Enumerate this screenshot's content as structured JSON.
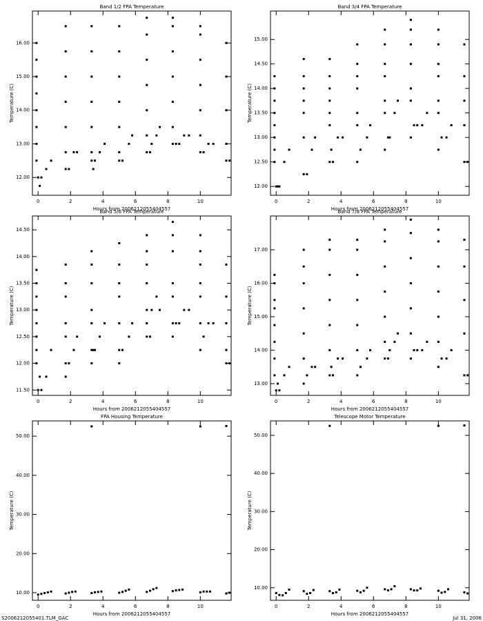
{
  "chart_data": [
    {
      "type": "scatter",
      "title": "Band 1/2 FPA Temperature",
      "x_label": "Hours from 2006212055404557",
      "y_label": "Temperature (C)",
      "color": "#000000",
      "xlim": [
        -0.35,
        11.9
      ],
      "xticks": [
        0,
        2,
        4,
        6,
        8,
        10
      ],
      "ylim": [
        11.47,
        16.95
      ],
      "yticks": [
        {
          "value": 12,
          "label": "12.00"
        },
        {
          "value": 13,
          "label": "13.00"
        },
        {
          "value": 14,
          "label": "14.00"
        },
        {
          "value": 15,
          "label": "15.00"
        },
        {
          "value": 16,
          "label": "16.00"
        }
      ],
      "x": [
        -0.1,
        -0.1,
        -0.1,
        -0.1,
        -0.1,
        -0.1,
        -0.1,
        -0.1,
        0.0,
        0.2,
        0.1,
        0.5,
        0.8,
        1.7,
        1.7,
        1.7,
        1.7,
        1.7,
        1.7,
        1.7,
        1.9,
        2.2,
        2.4,
        3.3,
        3.3,
        3.3,
        3.3,
        3.3,
        3.3,
        3.3,
        3.5,
        3.4,
        3.8,
        4.1,
        5.0,
        5.0,
        5.0,
        5.0,
        5.0,
        5.0,
        5.0,
        5.2,
        5.6,
        5.8,
        6.7,
        6.7,
        6.7,
        6.7,
        6.7,
        6.7,
        6.7,
        6.9,
        7.0,
        7.3,
        7.5,
        8.3,
        8.3,
        8.3,
        8.3,
        8.3,
        8.3,
        8.3,
        8.5,
        8.7,
        9.0,
        9.3,
        10.0,
        10.0,
        10.0,
        10.0,
        10.0,
        10.0,
        10.0,
        10.2,
        10.5,
        10.8,
        11.6,
        11.6,
        11.6,
        11.6,
        11.6,
        11.8
      ],
      "values": [
        12.5,
        13.0,
        13.5,
        14.0,
        14.5,
        15.0,
        15.5,
        16.0,
        12.0,
        12.0,
        11.75,
        12.25,
        12.5,
        12.75,
        13.5,
        14.25,
        15.0,
        15.75,
        16.5,
        12.25,
        12.25,
        12.75,
        12.75,
        12.75,
        13.5,
        14.25,
        15.0,
        15.75,
        16.5,
        12.5,
        12.5,
        12.25,
        12.75,
        13.0,
        12.75,
        13.5,
        14.25,
        15.0,
        15.75,
        16.5,
        12.5,
        12.5,
        13.0,
        13.25,
        13.25,
        14.0,
        14.75,
        15.5,
        16.25,
        16.75,
        12.75,
        12.75,
        13.0,
        13.25,
        13.5,
        13.5,
        14.25,
        15.0,
        15.75,
        16.5,
        16.75,
        13.0,
        13.0,
        13.0,
        13.25,
        13.25,
        13.25,
        14.0,
        14.75,
        15.5,
        16.25,
        16.5,
        12.75,
        12.75,
        13.0,
        13.0,
        13.0,
        14.0,
        15.0,
        16.0,
        12.5,
        12.5
      ]
    },
    {
      "type": "scatter",
      "title": "Band 3/4 FPA Temperature",
      "x_label": "Hours from 2006212055404557",
      "y_label": "Temperature (C)",
      "color": "#000000",
      "xlim": [
        -0.35,
        11.9
      ],
      "xticks": [
        0,
        2,
        4,
        6,
        8,
        10
      ],
      "ylim": [
        11.82,
        15.58
      ],
      "yticks": [
        {
          "value": 12,
          "label": "12.00"
        },
        {
          "value": 12.5,
          "label": "12.50"
        },
        {
          "value": 13,
          "label": "13.00"
        },
        {
          "value": 13.5,
          "label": "13.50"
        },
        {
          "value": 14,
          "label": "14.00"
        },
        {
          "value": 14.5,
          "label": "14.50"
        },
        {
          "value": 15,
          "label": "15.00"
        }
      ],
      "x": [
        -0.1,
        -0.1,
        -0.1,
        -0.1,
        -0.1,
        -0.1,
        -0.1,
        -0.1,
        0.0,
        0.2,
        0.1,
        0.5,
        0.8,
        1.7,
        1.7,
        1.7,
        1.7,
        1.7,
        1.7,
        1.7,
        1.9,
        2.2,
        2.4,
        3.3,
        3.3,
        3.3,
        3.3,
        3.3,
        3.3,
        3.3,
        3.5,
        3.4,
        3.8,
        4.1,
        5.0,
        5.0,
        5.0,
        5.0,
        5.0,
        5.0,
        5.0,
        5.2,
        5.6,
        5.8,
        6.7,
        6.7,
        6.7,
        6.7,
        6.7,
        6.7,
        6.7,
        6.9,
        7.0,
        7.3,
        7.5,
        8.3,
        8.3,
        8.3,
        8.3,
        8.3,
        8.3,
        8.3,
        8.5,
        8.7,
        9.0,
        9.3,
        10.0,
        10.0,
        10.0,
        10.0,
        10.0,
        10.0,
        10.0,
        10.2,
        10.5,
        10.8,
        11.6,
        11.6,
        11.6,
        11.6,
        11.6,
        11.8
      ],
      "values": [
        12.5,
        12.75,
        13.0,
        13.25,
        13.5,
        13.75,
        14.0,
        14.25,
        12.0,
        12.0,
        12.0,
        12.5,
        12.75,
        13.0,
        13.5,
        13.75,
        14.0,
        14.25,
        14.6,
        12.25,
        12.25,
        12.75,
        13.0,
        13.25,
        13.5,
        13.75,
        14.0,
        14.25,
        14.6,
        12.5,
        12.5,
        12.75,
        13.0,
        13.0,
        13.25,
        13.5,
        14.0,
        14.25,
        14.5,
        14.9,
        12.5,
        12.75,
        13.0,
        13.25,
        13.5,
        13.75,
        14.25,
        14.5,
        14.9,
        15.2,
        12.75,
        13.0,
        13.0,
        13.5,
        13.75,
        13.75,
        14.0,
        14.5,
        14.9,
        15.2,
        15.4,
        13.0,
        13.25,
        13.25,
        13.25,
        13.5,
        13.5,
        13.75,
        14.25,
        14.5,
        14.9,
        15.2,
        12.75,
        13.0,
        13.0,
        13.25,
        13.25,
        13.75,
        14.25,
        14.9,
        12.5,
        12.5
      ]
    },
    {
      "type": "scatter",
      "title": "Band 5/6 FPA Temperature",
      "x_label": "Hours from 2006212055404557",
      "y_label": "Temperature (C)",
      "color": "#000000",
      "xlim": [
        -0.35,
        11.9
      ],
      "xticks": [
        0,
        2,
        4,
        6,
        8,
        10
      ],
      "ylim": [
        11.4,
        14.76
      ],
      "yticks": [
        {
          "value": 11.5,
          "label": "11.50"
        },
        {
          "value": 12,
          "label": "12.00"
        },
        {
          "value": 12.5,
          "label": "12.50"
        },
        {
          "value": 13,
          "label": "13.00"
        },
        {
          "value": 13.5,
          "label": "13.50"
        },
        {
          "value": 14,
          "label": "14.00"
        },
        {
          "value": 14.5,
          "label": "14.50"
        }
      ],
      "x": [
        -0.1,
        -0.1,
        -0.1,
        -0.1,
        -0.1,
        -0.1,
        -0.1,
        -0.1,
        0.0,
        0.2,
        0.1,
        0.5,
        0.8,
        1.7,
        1.7,
        1.7,
        1.7,
        1.7,
        1.7,
        1.7,
        1.9,
        2.2,
        2.4,
        3.3,
        3.3,
        3.3,
        3.3,
        3.3,
        3.3,
        3.3,
        3.5,
        3.4,
        3.8,
        4.1,
        5.0,
        5.0,
        5.0,
        5.0,
        5.0,
        5.0,
        5.0,
        5.2,
        5.6,
        5.8,
        6.7,
        6.7,
        6.7,
        6.7,
        6.7,
        6.7,
        6.7,
        6.9,
        7.0,
        7.3,
        7.5,
        8.3,
        8.3,
        8.3,
        8.3,
        8.3,
        8.3,
        8.3,
        8.5,
        8.7,
        9.0,
        9.3,
        10.0,
        10.0,
        10.0,
        10.0,
        10.0,
        10.0,
        10.0,
        10.2,
        10.5,
        10.8,
        11.6,
        11.6,
        11.6,
        11.6,
        11.6,
        11.8
      ],
      "values": [
        12.0,
        12.25,
        12.5,
        12.75,
        13.0,
        13.25,
        13.5,
        13.75,
        11.5,
        11.5,
        11.75,
        11.75,
        12.25,
        12.0,
        12.5,
        12.75,
        13.25,
        13.5,
        13.85,
        11.75,
        12.0,
        12.25,
        12.5,
        12.25,
        12.75,
        13.0,
        13.5,
        13.85,
        14.1,
        12.0,
        12.25,
        12.25,
        12.5,
        12.75,
        12.0,
        12.75,
        13.25,
        13.5,
        13.85,
        14.25,
        12.25,
        12.25,
        12.5,
        12.75,
        12.75,
        13.0,
        13.5,
        13.85,
        14.1,
        14.4,
        12.5,
        12.5,
        13.0,
        13.25,
        13.0,
        12.75,
        13.25,
        13.5,
        14.1,
        14.4,
        14.65,
        12.5,
        12.75,
        12.75,
        13.0,
        13.0,
        12.75,
        13.25,
        13.5,
        13.85,
        14.1,
        14.4,
        12.25,
        12.5,
        12.75,
        12.75,
        12.25,
        12.75,
        13.25,
        13.85,
        12.0,
        12.0
      ]
    },
    {
      "type": "scatter",
      "title": "Band 7/8 FPA Temperature",
      "x_label": "Hours from 2006212055404557",
      "y_label": "Temperature (C)",
      "color": "#000000",
      "xlim": [
        -0.35,
        11.9
      ],
      "xticks": [
        0,
        2,
        4,
        6,
        8,
        10
      ],
      "ylim": [
        12.65,
        18.01
      ],
      "yticks": [
        {
          "value": 13,
          "label": "13.00"
        },
        {
          "value": 14,
          "label": "14.00"
        },
        {
          "value": 15,
          "label": "15.00"
        },
        {
          "value": 16,
          "label": "16.00"
        },
        {
          "value": 17,
          "label": "17.00"
        }
      ],
      "x": [
        -0.1,
        -0.1,
        -0.1,
        -0.1,
        -0.1,
        -0.1,
        -0.1,
        -0.1,
        0.0,
        0.2,
        0.1,
        0.5,
        0.8,
        1.7,
        1.7,
        1.7,
        1.7,
        1.7,
        1.7,
        1.7,
        1.9,
        2.2,
        2.4,
        3.3,
        3.3,
        3.3,
        3.3,
        3.3,
        3.3,
        3.3,
        3.5,
        3.4,
        3.8,
        4.1,
        5.0,
        5.0,
        5.0,
        5.0,
        5.0,
        5.0,
        5.0,
        5.2,
        5.6,
        5.8,
        6.7,
        6.7,
        6.7,
        6.7,
        6.7,
        6.7,
        6.7,
        6.9,
        7.0,
        7.3,
        7.5,
        8.3,
        8.3,
        8.3,
        8.3,
        8.3,
        8.3,
        8.3,
        8.5,
        8.7,
        9.0,
        9.3,
        10.0,
        10.0,
        10.0,
        10.0,
        10.0,
        10.0,
        10.0,
        10.2,
        10.5,
        10.8,
        11.6,
        11.6,
        11.6,
        11.6,
        11.6,
        11.8
      ],
      "values": [
        13.25,
        13.75,
        14.25,
        14.75,
        15.25,
        15.5,
        16.0,
        16.25,
        12.8,
        12.8,
        13.0,
        13.25,
        13.5,
        13.75,
        14.5,
        15.25,
        16.0,
        16.5,
        17.0,
        13.0,
        13.25,
        13.5,
        13.5,
        14.0,
        14.75,
        15.5,
        16.25,
        17.0,
        17.3,
        13.25,
        13.25,
        13.5,
        13.75,
        13.75,
        14.0,
        14.75,
        15.5,
        16.25,
        17.0,
        17.3,
        13.25,
        13.5,
        13.75,
        14.0,
        14.25,
        15.0,
        15.75,
        16.5,
        17.25,
        17.6,
        13.75,
        13.75,
        14.0,
        14.25,
        14.5,
        14.5,
        15.25,
        16.0,
        16.75,
        17.5,
        17.9,
        13.75,
        14.0,
        14.0,
        14.0,
        14.25,
        14.25,
        15.0,
        15.75,
        16.5,
        17.25,
        17.6,
        13.5,
        13.75,
        13.75,
        14.0,
        14.5,
        15.5,
        16.5,
        17.3,
        13.25,
        13.25
      ]
    },
    {
      "type": "scatter",
      "title": "FPA Housing Temperature",
      "x_label": "Hours from 2006212055404557",
      "y_label": "Temperature (C)",
      "color": "#000000",
      "xlim": [
        -0.35,
        11.9
      ],
      "xticks": [
        0,
        2,
        4,
        6,
        8,
        10
      ],
      "ylim": [
        8.06,
        53.9
      ],
      "yticks": [
        {
          "value": 10,
          "label": "10.00"
        },
        {
          "value": 20,
          "label": "20.00"
        },
        {
          "value": 30,
          "label": "30.00"
        },
        {
          "value": 40,
          "label": "40.00"
        },
        {
          "value": 50,
          "label": "50.00"
        }
      ],
      "x": [
        0.0,
        0.2,
        0.4,
        0.6,
        0.8,
        1.7,
        1.9,
        2.1,
        2.3,
        3.3,
        3.5,
        3.7,
        3.9,
        3.3,
        5.0,
        5.2,
        5.4,
        5.6,
        6.7,
        6.9,
        7.1,
        7.3,
        8.3,
        8.5,
        8.7,
        8.9,
        10.0,
        10.2,
        10.4,
        10.6,
        10.0,
        11.6,
        11.8,
        11.6
      ],
      "values": [
        9.5,
        9.7,
        9.9,
        10.1,
        10.3,
        9.8,
        10.0,
        10.2,
        10.3,
        9.9,
        10.1,
        10.2,
        10.3,
        52.5,
        10.0,
        10.2,
        10.5,
        10.8,
        10.2,
        10.5,
        10.9,
        11.2,
        10.4,
        10.6,
        10.7,
        10.8,
        10.1,
        10.3,
        10.3,
        10.3,
        52.5,
        9.8,
        10.0,
        52.6
      ]
    },
    {
      "type": "scatter",
      "title": "Telescope Motor Temperature",
      "x_label": "Hours from 2006212055404557",
      "y_label": "Temperature (C)",
      "color": "#000000",
      "xlim": [
        -0.35,
        11.9
      ],
      "xticks": [
        0,
        2,
        4,
        6,
        8,
        10
      ],
      "ylim": [
        6.7,
        53.8
      ],
      "yticks": [
        {
          "value": 10,
          "label": "10.00"
        },
        {
          "value": 20,
          "label": "20.00"
        },
        {
          "value": 30,
          "label": "30.00"
        },
        {
          "value": 40,
          "label": "40.00"
        },
        {
          "value": 50,
          "label": "50.00"
        }
      ],
      "x": [
        0.0,
        0.2,
        0.4,
        0.6,
        0.8,
        1.7,
        1.9,
        2.1,
        2.3,
        3.3,
        3.5,
        3.7,
        3.9,
        3.3,
        5.0,
        5.2,
        5.4,
        5.6,
        6.7,
        6.9,
        7.1,
        7.3,
        8.3,
        8.5,
        8.7,
        8.9,
        10.0,
        10.2,
        10.4,
        10.6,
        10.0,
        11.6,
        11.8,
        11.6
      ],
      "values": [
        8.6,
        8.1,
        8.0,
        8.6,
        9.5,
        9.1,
        8.4,
        8.6,
        9.4,
        9.1,
        8.6,
        8.8,
        9.5,
        52.5,
        9.2,
        8.8,
        9.2,
        10.0,
        9.6,
        9.3,
        9.6,
        10.4,
        9.6,
        9.3,
        9.3,
        9.8,
        9.2,
        8.7,
        8.9,
        9.6,
        52.5,
        8.8,
        8.5,
        52.6
      ]
    }
  ],
  "footer": {
    "left": "S2006212055401.TLM_GAC",
    "right": "Jul 31, 2006"
  }
}
